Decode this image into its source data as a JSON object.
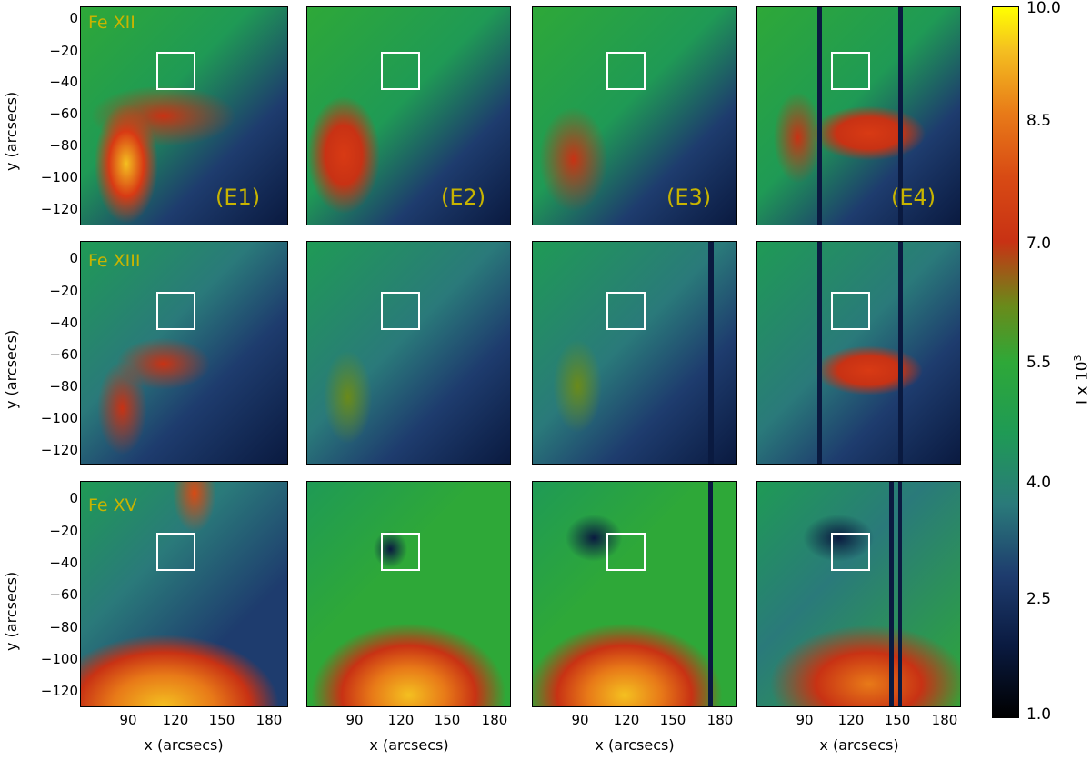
{
  "figure": {
    "y_tick_labels": [
      "0",
      "−20",
      "−40",
      "−60",
      "−80",
      "−100",
      "−120"
    ],
    "x_tick_labels": [
      "90",
      "120",
      "150",
      "180"
    ],
    "y_axis_title": "y (arcsecs)",
    "x_axis_title": "x (arcsecs)",
    "rows": [
      {
        "ion": "Fe XII"
      },
      {
        "ion": "Fe XIII"
      },
      {
        "ion": "Fe XV"
      }
    ],
    "columns": [
      {
        "event": "(E1)"
      },
      {
        "event": "(E2)"
      },
      {
        "event": "(E3)"
      },
      {
        "event": "(E4)"
      }
    ],
    "colorbar": {
      "ticks": [
        "10.0",
        "8.5",
        "7.0",
        "5.5",
        "4.0",
        "2.5",
        "1.0"
      ],
      "range": [
        1.0,
        10.0
      ],
      "title_base": "I x 10",
      "title_exp": "3"
    }
  }
}
